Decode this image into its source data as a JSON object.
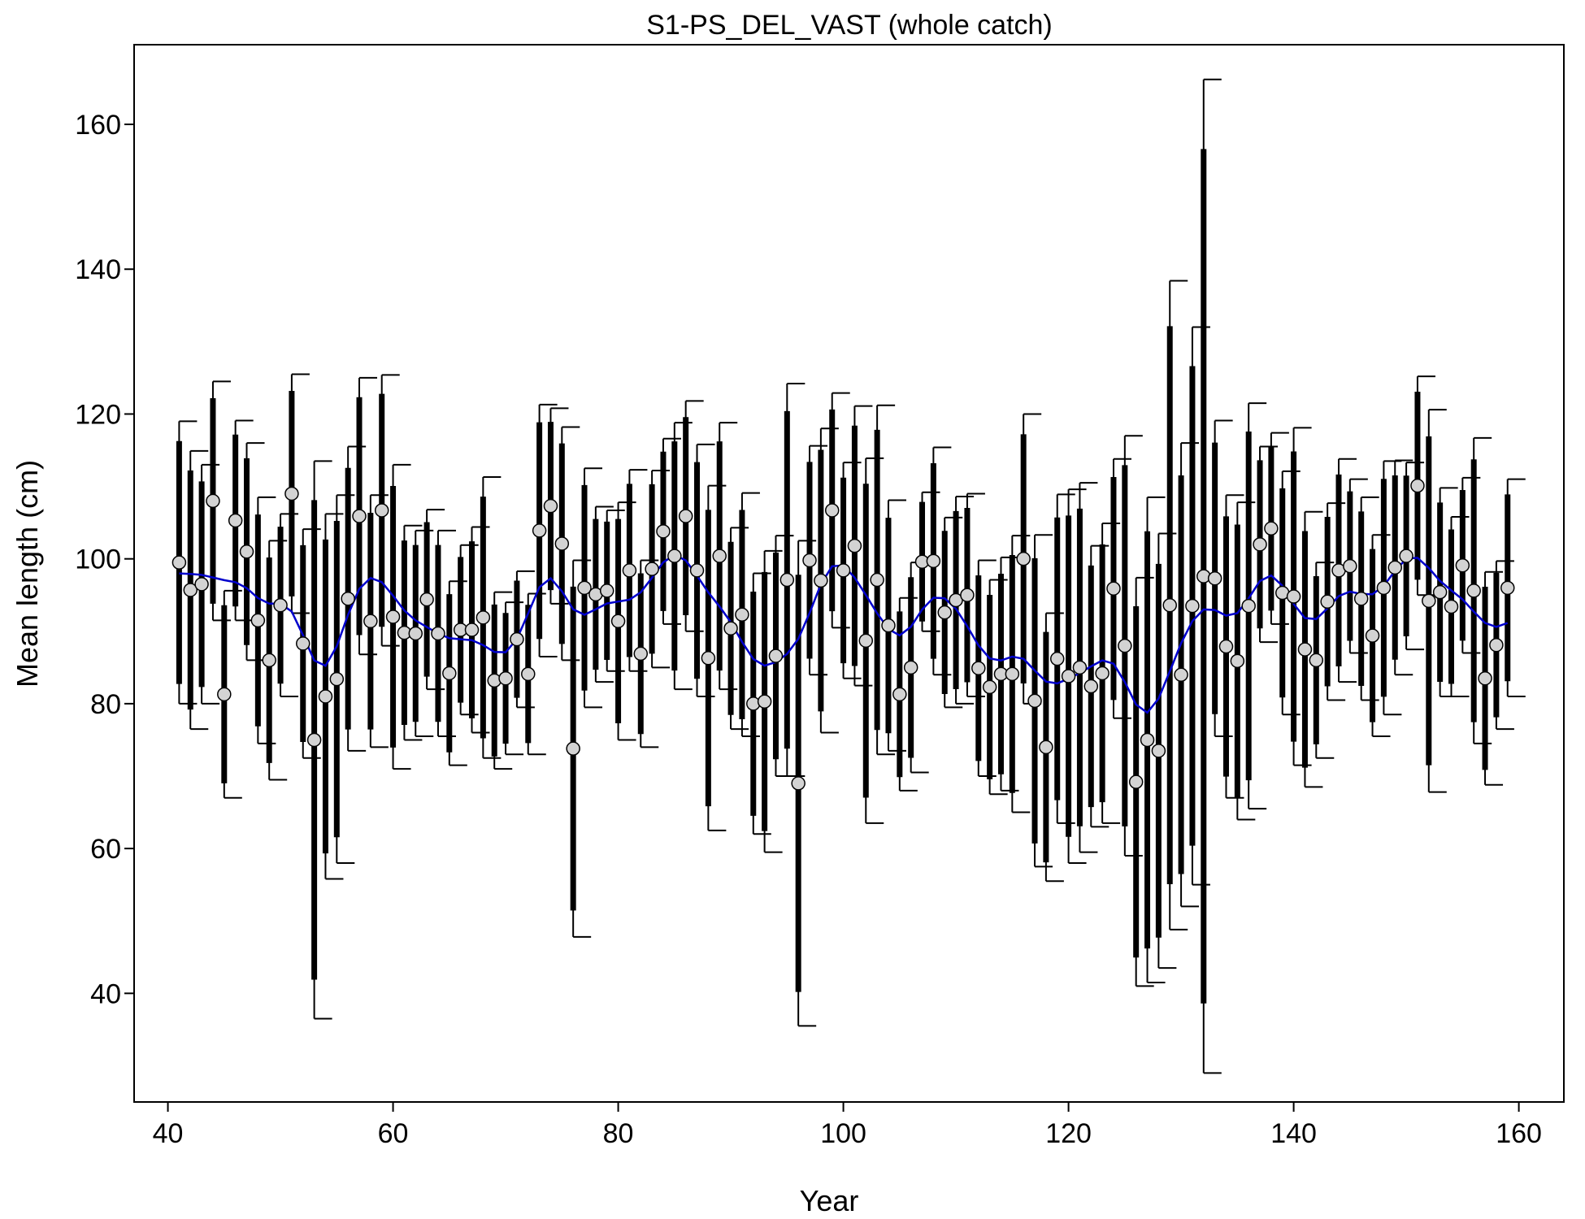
{
  "chart_data": {
    "type": "scatter",
    "title": "S1-PS_DEL_VAST (whole catch)",
    "xlabel": "Year",
    "ylabel": "Mean length (cm)",
    "xlim": [
      37,
      164
    ],
    "ylim": [
      25,
      171
    ],
    "xticks": [
      40,
      60,
      80,
      100,
      120,
      140,
      160
    ],
    "yticks": [
      40,
      60,
      80,
      100,
      120,
      140,
      160
    ],
    "colors": {
      "line": "#0000cc",
      "point_fill": "#d3d3d3",
      "bar": "#000000"
    },
    "years": [
      41,
      42,
      43,
      44,
      45,
      46,
      47,
      48,
      49,
      50,
      51,
      52,
      53,
      54,
      55,
      56,
      57,
      58,
      59,
      60,
      61,
      62,
      63,
      64,
      65,
      66,
      67,
      68,
      69,
      70,
      71,
      72,
      73,
      74,
      75,
      76,
      77,
      78,
      79,
      80,
      81,
      82,
      83,
      84,
      85,
      86,
      87,
      88,
      89,
      90,
      91,
      92,
      93,
      94,
      95,
      96,
      97,
      98,
      99,
      100,
      101,
      102,
      103,
      104,
      105,
      106,
      107,
      108,
      109,
      110,
      111,
      112,
      113,
      114,
      115,
      116,
      117,
      118,
      119,
      120,
      121,
      122,
      123,
      124,
      125,
      126,
      127,
      128,
      129,
      130,
      131,
      132,
      133,
      134,
      135,
      136,
      137,
      138,
      139,
      140,
      141,
      142,
      143,
      144,
      145,
      146,
      147,
      148,
      149,
      150,
      151,
      152,
      153,
      154,
      155,
      156,
      157,
      158,
      159
    ],
    "mean": [
      99.5,
      95.7,
      96.5,
      108,
      81.3,
      105.3,
      101,
      91.5,
      86,
      93.6,
      109,
      88.3,
      75,
      81,
      83.4,
      94.5,
      105.9,
      91.4,
      106.7,
      92,
      89.8,
      89.7,
      94.4,
      89.7,
      84.2,
      90.2,
      90.2,
      91.9,
      83.2,
      83.5,
      88.9,
      84.1,
      103.9,
      107.3,
      102.1,
      73.8,
      96,
      95.1,
      95.6,
      91.4,
      98.4,
      86.9,
      98.6,
      103.8,
      100.4,
      105.9,
      98.4,
      86.3,
      100.4,
      90.4,
      92.3,
      80,
      80.3,
      86.6,
      97.1,
      69,
      99.8,
      97,
      106.7,
      98.4,
      101.8,
      88.7,
      97.1,
      90.8,
      81.3,
      85,
      99.6,
      99.7,
      92.6,
      94.3,
      95,
      84.9,
      82.3,
      84.1,
      84.1,
      100,
      80.4,
      74,
      86.2,
      83.8,
      85,
      82.4,
      84.2,
      95.9,
      88,
      69.2,
      75,
      73.5,
      93.6,
      84,
      93.5,
      97.6,
      97.3,
      87.9,
      85.9,
      93.5,
      102,
      104.2,
      95.3,
      94.8,
      87.5,
      86,
      94.1,
      98.4,
      99,
      94.5,
      89.4,
      96,
      98.8,
      100.4,
      110.1,
      94.2,
      95.4,
      93.4,
      99.1,
      95.6,
      83.5,
      88.1,
      96
    ],
    "lower": [
      80,
      76.5,
      80,
      91.5,
      67,
      91.5,
      86,
      74.5,
      69.5,
      81,
      92.5,
      72.5,
      36.5,
      55.8,
      58,
      73.5,
      86.8,
      74,
      88,
      71,
      75,
      75.5,
      82,
      75.5,
      71.5,
      78.5,
      76,
      72.5,
      71,
      73,
      79.5,
      73,
      86.5,
      93.8,
      86,
      47.8,
      79.5,
      83,
      84.5,
      75,
      84.5,
      74,
      85,
      91,
      82,
      90,
      81,
      62.5,
      82,
      76.5,
      75.5,
      62,
      59.5,
      70,
      70,
      35.5,
      84,
      76,
      90.5,
      83.5,
      82.5,
      63.5,
      73,
      73.5,
      68,
      70.5,
      90,
      84,
      79.5,
      80,
      81,
      70,
      67.5,
      68,
      65,
      80,
      57.5,
      55.5,
      63.5,
      58,
      59.5,
      63,
      63.5,
      78,
      59,
      41,
      41.5,
      43.5,
      48.8,
      52,
      55,
      29,
      75.5,
      67,
      64,
      65.5,
      88.5,
      91,
      78.5,
      71.5,
      68.5,
      72.5,
      80.5,
      83,
      87,
      80.5,
      75.5,
      78.5,
      84,
      87.5,
      95,
      67.8,
      81,
      81,
      87,
      74.5,
      68.8,
      76.5,
      81
    ]
  }
}
